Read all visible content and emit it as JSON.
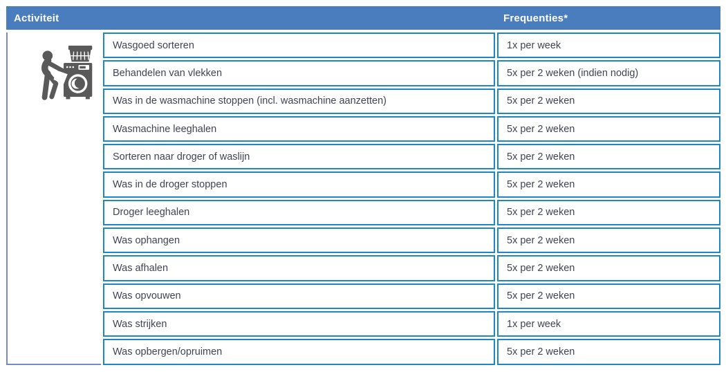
{
  "table": {
    "header": {
      "activity": "Activiteit",
      "frequency": "Frequenties*"
    },
    "category_icon": "person-loading-washing-machine-icon",
    "rows": [
      {
        "activity": "Wasgoed sorteren",
        "frequency": "1x per week"
      },
      {
        "activity": "Behandelen van vlekken",
        "frequency": "5x per 2 weken (indien nodig)"
      },
      {
        "activity": "Was in de wasmachine stoppen (incl. wasmachine aanzetten)",
        "frequency": "5x per 2 weken"
      },
      {
        "activity": "Wasmachine leeghalen",
        "frequency": "5x per 2 weken"
      },
      {
        "activity": "Sorteren naar droger of waslijn",
        "frequency": "5x per 2 weken"
      },
      {
        "activity": "Was in de droger stoppen",
        "frequency": "5x per 2 weken"
      },
      {
        "activity": "Droger leeghalen",
        "frequency": "5x per 2 weken"
      },
      {
        "activity": "Was ophangen",
        "frequency": "5x per 2 weken"
      },
      {
        "activity": "Was afhalen",
        "frequency": "5x per 2 weken"
      },
      {
        "activity": "Was opvouwen",
        "frequency": "5x per 2 weken"
      },
      {
        "activity": "Was strijken",
        "frequency": "1x per week"
      },
      {
        "activity": "Was opbergen/opruimen",
        "frequency": "5x per 2 weken"
      }
    ],
    "colors": {
      "header_bg": "#4A7DBD",
      "header_text": "#FFFFFF",
      "cell_border": "#1C86C8",
      "icon_cell_border": "#7589CF",
      "cell_text": "#3F4355",
      "icon_color": "#595959"
    }
  }
}
